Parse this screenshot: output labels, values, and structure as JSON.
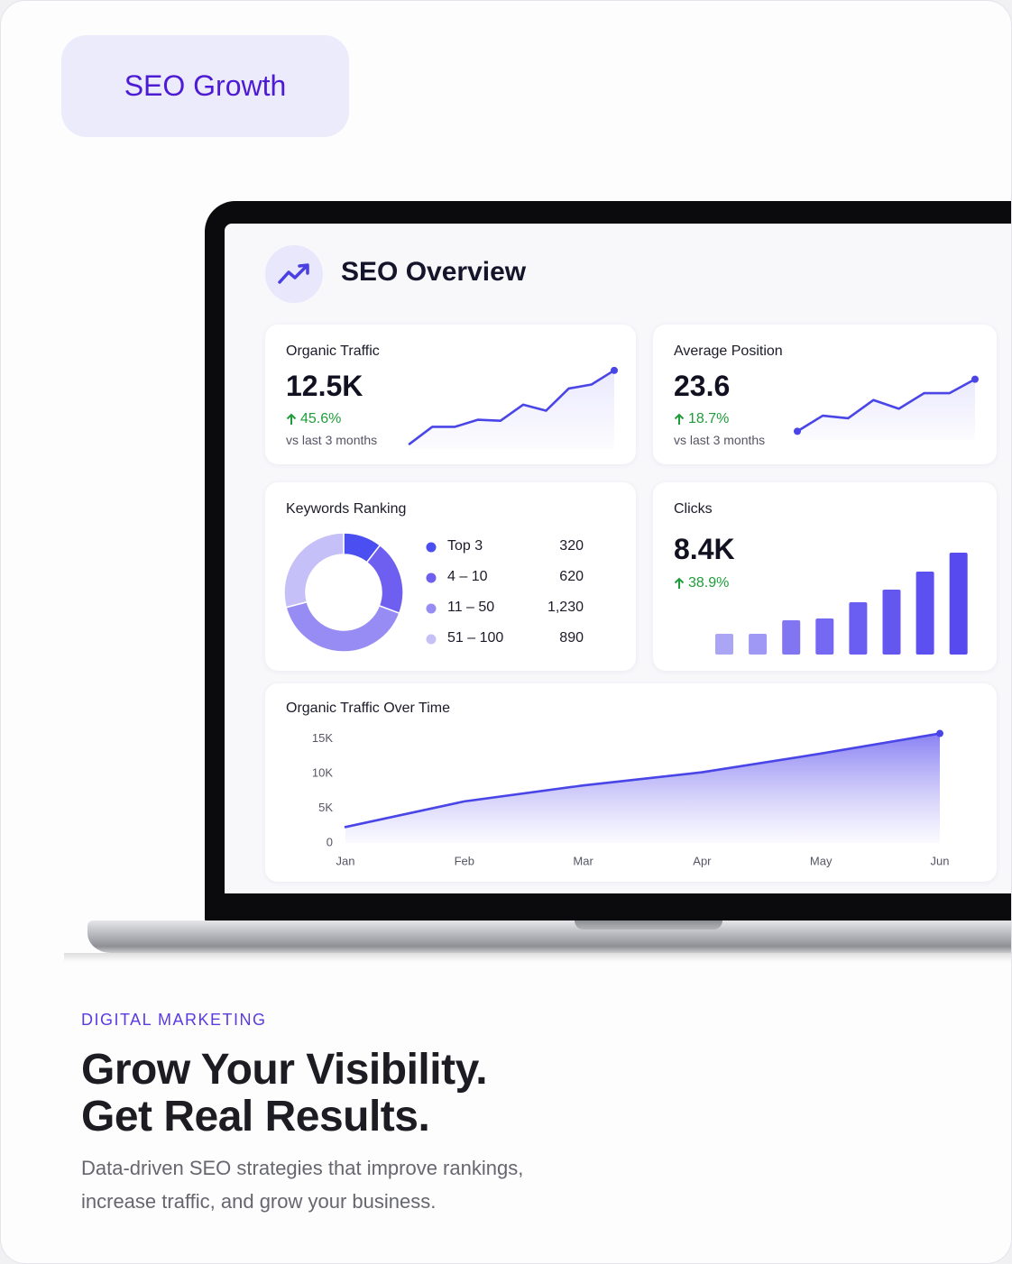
{
  "badge": "SEO Growth",
  "dashboard": {
    "title": "SEO Overview",
    "organic_traffic": {
      "label": "Organic Traffic",
      "value": "12.5K",
      "change": "45.6%",
      "note": "vs last 3 months",
      "chart": {
        "type": "line",
        "color": "#4a45e6",
        "values": [
          5,
          22,
          22,
          29,
          28,
          44,
          38,
          60,
          64,
          78
        ],
        "ylim": [
          0,
          85
        ]
      }
    },
    "average_position": {
      "label": "Average Position",
      "value": "23.6",
      "change": "18.7%",
      "note": "vs last 3 months",
      "chart": {
        "type": "line",
        "color": "#4a45e6",
        "values": [
          10,
          28,
          25,
          46,
          36,
          54,
          54,
          70
        ],
        "ylim": [
          0,
          80
        ]
      }
    },
    "keywords_ranking": {
      "label": "Keywords Ranking",
      "chart": {
        "type": "pie",
        "categories": [
          "Top 3",
          "4 – 10",
          "11 – 50",
          "51 – 100"
        ],
        "values": [
          320,
          620,
          1230,
          890
        ],
        "value_labels": [
          "320",
          "620",
          "1,230",
          "890"
        ],
        "colors": [
          "#4b4ef0",
          "#6f5ff0",
          "#978cf3",
          "#c6c0f8"
        ]
      }
    },
    "clicks": {
      "label": "Clicks",
      "value": "8.4K",
      "change": "38.9%",
      "chart": {
        "type": "bar",
        "values": [
          23,
          23,
          38,
          40,
          58,
          72,
          92,
          113
        ],
        "ylim": [
          0,
          120
        ],
        "colors": [
          "#aba5f6",
          "#9f98f5",
          "#8175f2",
          "#7568f2",
          "#6a5df1",
          "#6357f0",
          "#5c50f0",
          "#574bef"
        ]
      }
    },
    "traffic_over_time": {
      "label": "Organic Traffic Over Time",
      "chart": {
        "type": "line",
        "color": "#4a45e6",
        "categories": [
          "Jan",
          "Feb",
          "Mar",
          "Apr",
          "May",
          "Jun"
        ],
        "values": [
          2300,
          6000,
          8300,
          10200,
          12900,
          15800
        ],
        "ylim": [
          0,
          16000
        ],
        "yticks": [
          0,
          {
            "value": 5000,
            "label": "5K"
          },
          {
            "value": 10000,
            "label": "10K"
          },
          {
            "value": 15000,
            "label": "15K"
          }
        ]
      }
    }
  },
  "section": {
    "eyebrow": "DIGITAL MARKETING",
    "headline": [
      "Grow Your Visibility.",
      "Get Real Results."
    ],
    "description": [
      "Data-driven SEO strategies that improve rankings,",
      "increase traffic, and grow your business."
    ]
  }
}
